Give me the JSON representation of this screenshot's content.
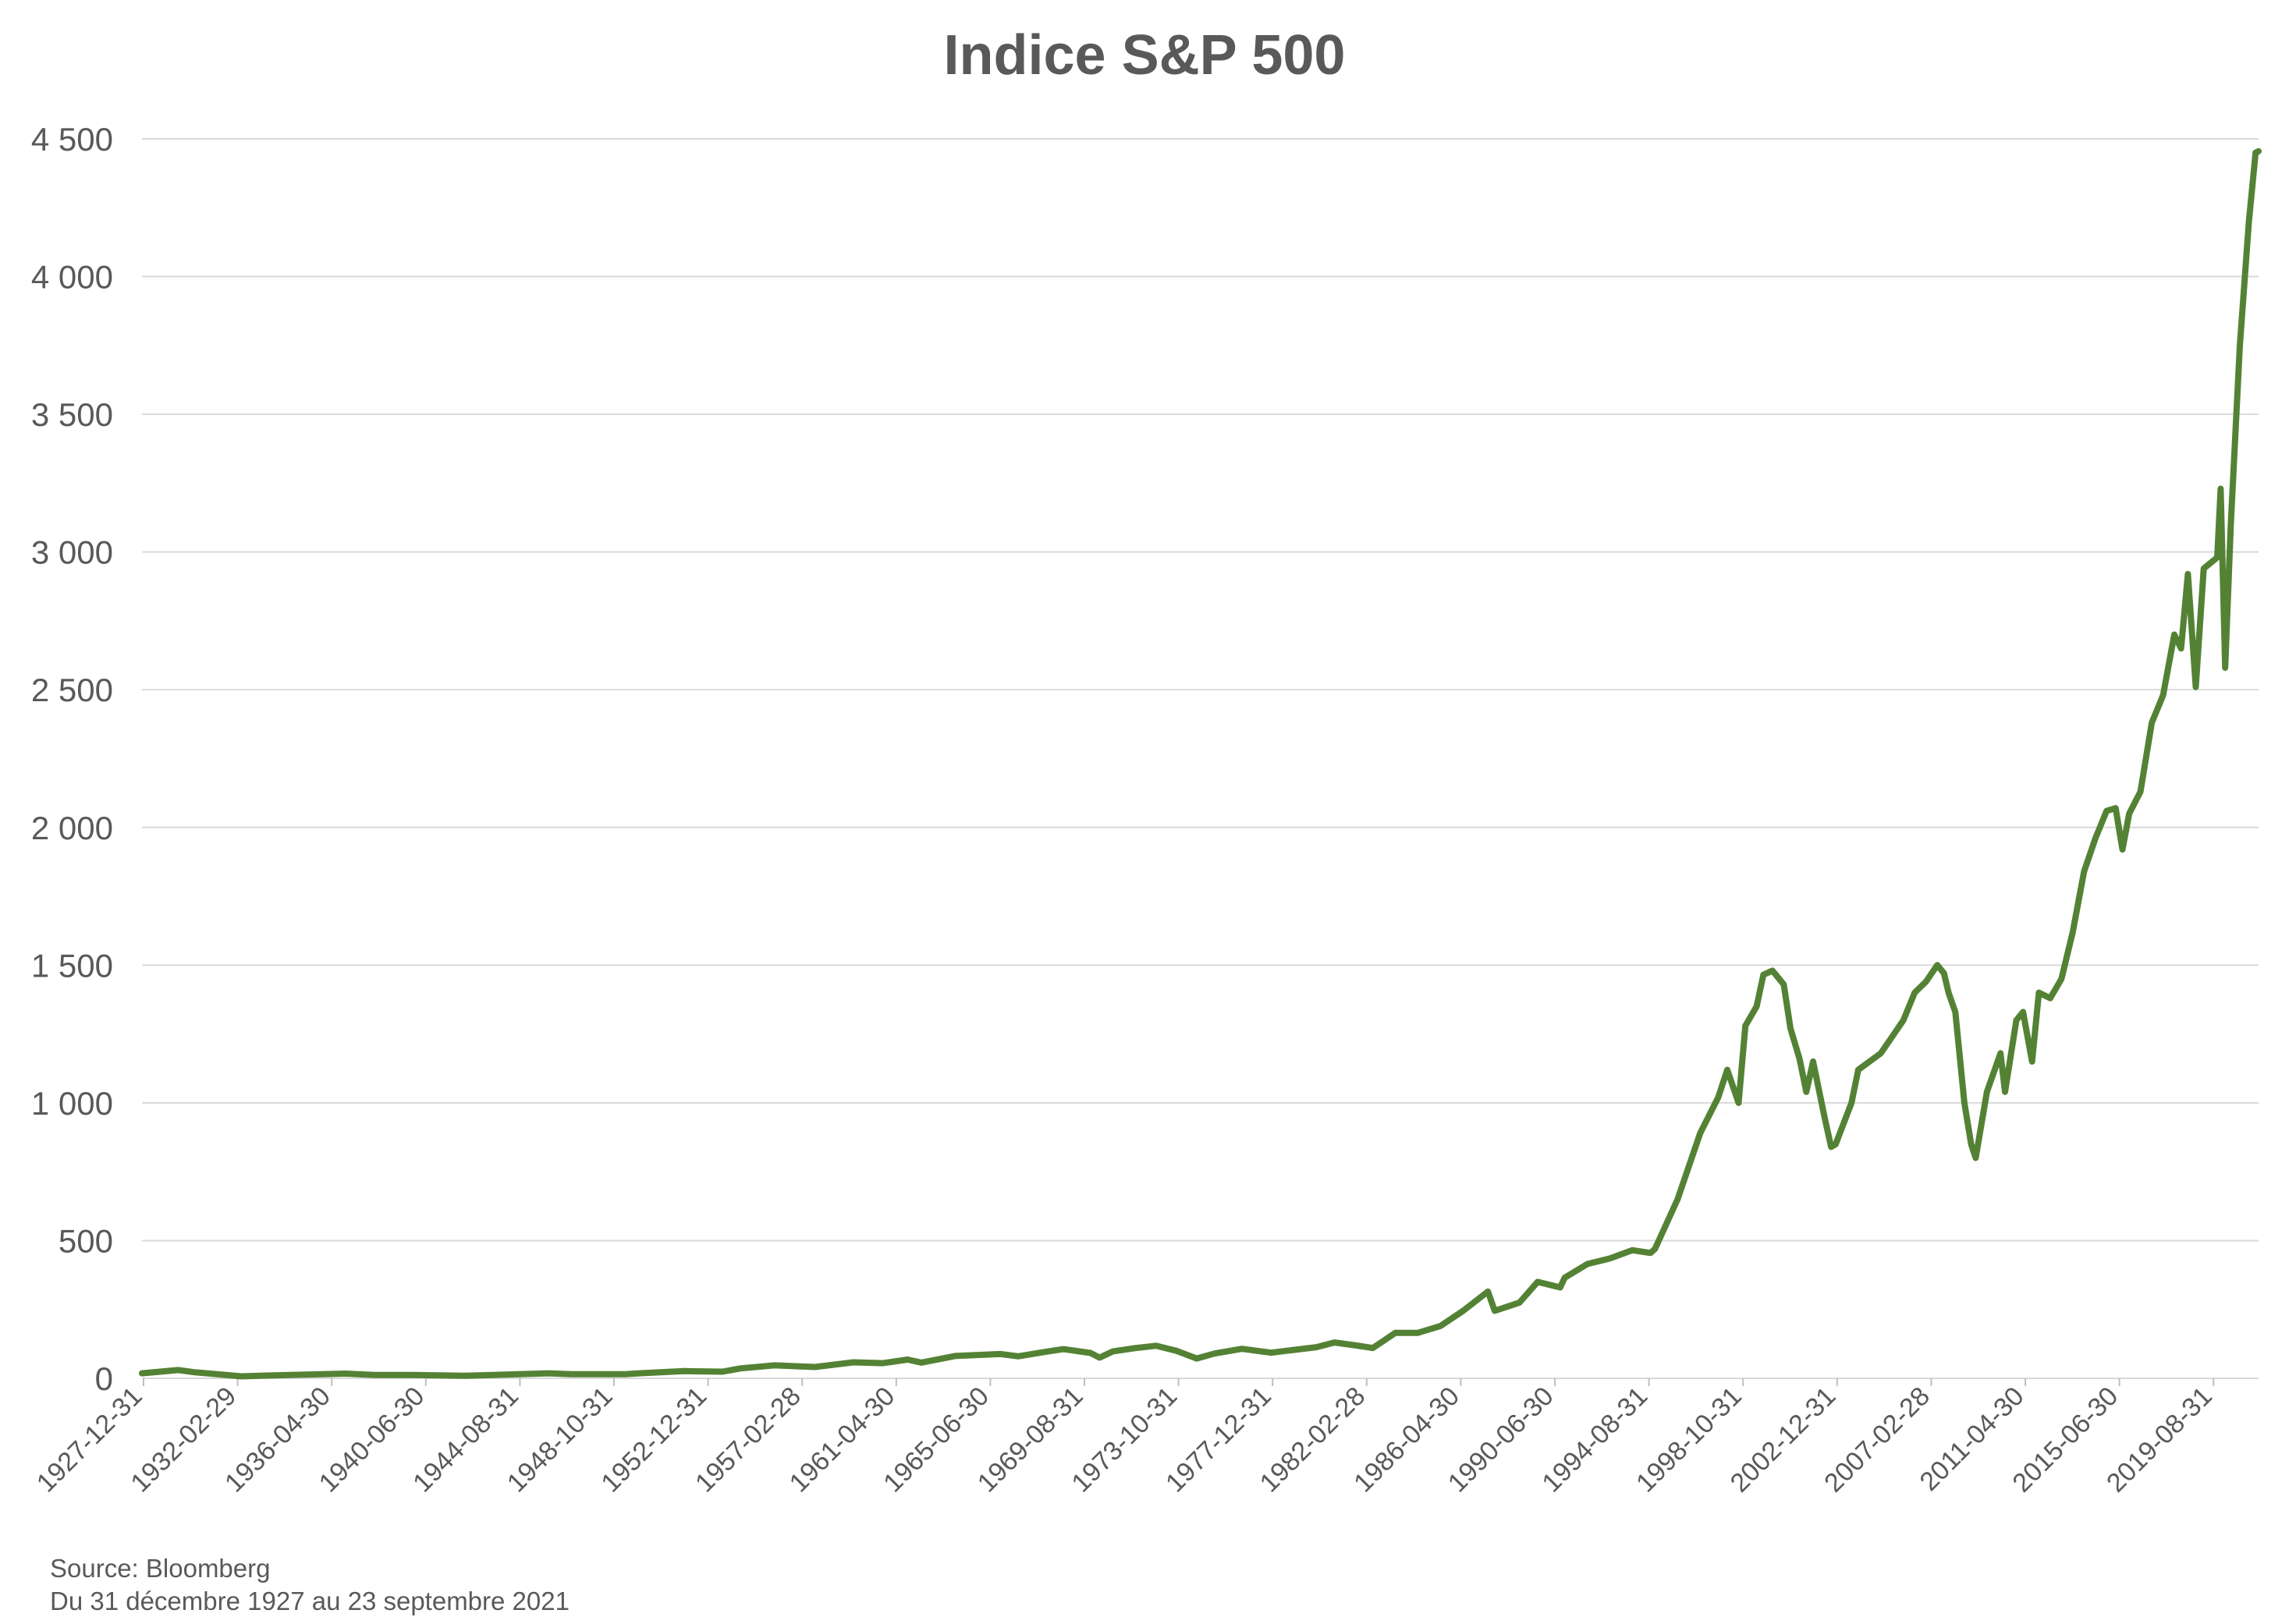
{
  "chart_data": {
    "type": "line",
    "title": "Indice S&P 500",
    "xlabel": "",
    "ylabel": "",
    "ylim": [
      0,
      4500
    ],
    "yticks": [
      0,
      500,
      1000,
      1500,
      2000,
      2500,
      3000,
      3500,
      4000,
      4500
    ],
    "ytick_labels": [
      "0",
      "500",
      "1 000",
      "1 500",
      "2 000",
      "2 500",
      "3 000",
      "3 500",
      "4 000",
      "4 500"
    ],
    "xlim": [
      1927.99,
      2021.73
    ],
    "xtick_labels": [
      "1927-12-31",
      "1932-02-29",
      "1936-04-30",
      "1940-06-30",
      "1944-08-31",
      "1948-10-31",
      "1952-12-31",
      "1957-02-28",
      "1961-04-30",
      "1965-06-30",
      "1969-08-31",
      "1973-10-31",
      "1977-12-31",
      "1982-02-28",
      "1986-04-30",
      "1990-06-30",
      "1994-08-31",
      "1998-10-31",
      "2002-12-31",
      "2007-02-28",
      "2011-04-30",
      "2015-06-30",
      "2019-08-31"
    ],
    "grid": true,
    "legend": "none",
    "color": "#548235",
    "series": [
      {
        "x": [
          1927.99,
          1929.6,
          1930.3,
          1932.4,
          1933.5,
          1936.0,
          1937.0,
          1938.3,
          1940.0,
          1942.3,
          1946.0,
          1947.0,
          1949.4,
          1950.0,
          1952.0,
          1953.7,
          1954.5,
          1956.0,
          1957.8,
          1959.5,
          1960.8,
          1961.9,
          1962.5,
          1964.0,
          1966.0,
          1966.8,
          1968.0,
          1968.8,
          1970.0,
          1970.4,
          1971.0,
          1972.0,
          1972.9,
          1973.8,
          1974.7,
          1975.5,
          1976.7,
          1978.0,
          1979.0,
          1980.0,
          1980.8,
          1981.7,
          1982.5,
          1983.5,
          1984.5,
          1985.5,
          1986.5,
          1987.6,
          1987.9,
          1989.0,
          1989.8,
          1990.8,
          1991.0,
          1992.0,
          1993.0,
          1994.0,
          1994.8,
          1995.0,
          1996.0,
          1997.0,
          1997.8,
          1998.2,
          1998.7,
          1999.0,
          1999.5,
          1999.8,
          2000.2,
          2000.7,
          2001.0,
          2001.4,
          2001.7,
          2002.0,
          2002.5,
          2002.8,
          2003.0,
          2003.7,
          2004.0,
          2005.0,
          2006.0,
          2006.5,
          2007.0,
          2007.5,
          2007.8,
          2008.0,
          2008.3,
          2008.7,
          2009.0,
          2009.2,
          2009.7,
          2010.3,
          2010.5,
          2011.0,
          2011.3,
          2011.7,
          2012.0,
          2012.5,
          2013.0,
          2013.5,
          2014.0,
          2014.5,
          2015.0,
          2015.4,
          2015.7,
          2016.0,
          2016.5,
          2017.0,
          2017.5,
          2018.0,
          2018.3,
          2018.6,
          2018.95,
          2019.3,
          2019.9,
          2020.05,
          2020.25,
          2020.5,
          2020.9,
          2021.3,
          2021.6,
          2021.73
        ],
        "values": [
          18,
          30,
          22,
          7,
          10,
          15,
          17,
          12,
          12,
          9,
          18,
          15,
          15,
          18,
          26,
          24,
          36,
          47,
          41,
          58,
          55,
          68,
          57,
          81,
          88,
          80,
          96,
          106,
          92,
          75,
          98,
          110,
          118,
          100,
          72,
          90,
          107,
          93,
          103,
          113,
          130,
          120,
          110,
          165,
          165,
          190,
          245,
          315,
          245,
          275,
          350,
          330,
          365,
          415,
          435,
          465,
          455,
          470,
          650,
          890,
          1020,
          1120,
          1000,
          1280,
          1350,
          1465,
          1480,
          1430,
          1270,
          1160,
          1040,
          1150,
          950,
          840,
          850,
          1000,
          1120,
          1180,
          1300,
          1400,
          1440,
          1500,
          1470,
          1400,
          1330,
          1000,
          850,
          800,
          1040,
          1180,
          1040,
          1300,
          1330,
          1150,
          1400,
          1380,
          1450,
          1620,
          1840,
          1960,
          2060,
          2070,
          1920,
          2050,
          2130,
          2380,
          2480,
          2700,
          2650,
          2920,
          2510,
          2940,
          2980,
          3230,
          2580,
          3100,
          3750,
          4200,
          4450,
          4455
        ]
      }
    ]
  },
  "footnote": {
    "source": "Source: Bloomberg",
    "period": "Du 31 décembre 1927 au 23 septembre 2021"
  }
}
